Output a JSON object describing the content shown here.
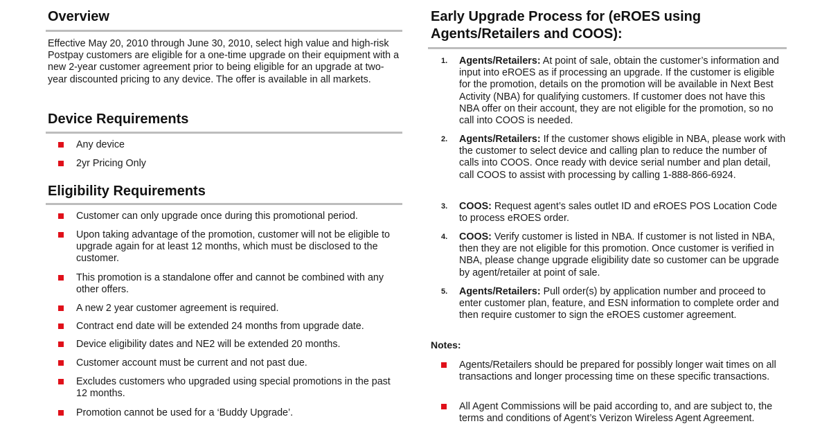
{
  "left": {
    "overview": {
      "heading": "Overview",
      "text": "Effective May 20, 2010 through June 30, 2010, select high value and high-risk Postpay customers are eligible for a one-time upgrade on their equipment with a new 2-year customer agreement prior to being eligible for an upgrade at two-year discounted pricing to any device. The offer is available in all markets."
    },
    "device": {
      "heading": "Device Requirements",
      "items": [
        "Any device",
        "2yr Pricing Only"
      ]
    },
    "eligibility": {
      "heading": "Eligibility Requirements",
      "items": [
        "Customer can only upgrade once during this promotional period.",
        "Upon taking advantage of the promotion, customer will not be eligible to upgrade again for at least 12 months, which must be disclosed to the customer.",
        "This promotion is a standalone offer and cannot be combined with any other offers.",
        "A new 2 year customer agreement is required.",
        "Contract end date will be extended 24 months from upgrade date.",
        "Device eligibility dates and NE2 will be extended 20 months.",
        "Customer account must be current and not past due.",
        "Excludes customers who upgraded using special promotions in the past 12 months.",
        "Promotion cannot be used for a ‘Buddy Upgrade’."
      ]
    }
  },
  "right": {
    "heading": "Early Upgrade Process for (eROES using Agents/Retailers and COOS):",
    "steps": [
      {
        "num": "1.",
        "lead": "Agents/Retailers:",
        "text": " At point of sale, obtain the customer’s information and input into eROES as if processing an upgrade. If the customer is eligible for the promotion, details on the promotion will be available in Next Best Activity (NBA) for qualifying customers. If customer does not have this NBA offer on their account, they are not eligible for the promotion, so no call into COOS is needed."
      },
      {
        "num": "2.",
        "lead": "Agents/Retailers:",
        "text": " If the customer shows eligible in NBA, please work with the customer to select device and calling plan to reduce the number of calls into COOS. Once ready with device serial number and plan detail, call COOS to assist with processing by calling 1-888-866-6924."
      },
      {
        "num": "3.",
        "lead": "COOS:",
        "text": " Request agent’s sales outlet ID and eROES POS Location Code to process eROES order."
      },
      {
        "num": "4.",
        "lead": "COOS:",
        "text": " Verify customer is listed in NBA. If customer is not listed in NBA, then they are not eligible for this promotion. Once customer is verified in NBA, please change upgrade eligibility date so customer can be upgrade by agent/retailer at point of sale."
      },
      {
        "num": "5.",
        "lead": "Agents/Retailers:",
        "text": " Pull order(s) by application number and proceed to enter customer plan, feature, and ESN information to complete order and then require customer to sign the eROES customer agreement."
      }
    ],
    "notes_label": "Notes:",
    "notes": [
      "Agents/Retailers should be prepared for possibly longer wait times on all transactions and longer processing time on these specific transactions.",
      "All Agent Commissions will be paid according to, and are subject to, the terms and conditions of Agent’s Verizon Wireless Agent Agreement."
    ]
  },
  "colors": {
    "bullet": "#e0101a",
    "rule": "#bdbdbd"
  }
}
